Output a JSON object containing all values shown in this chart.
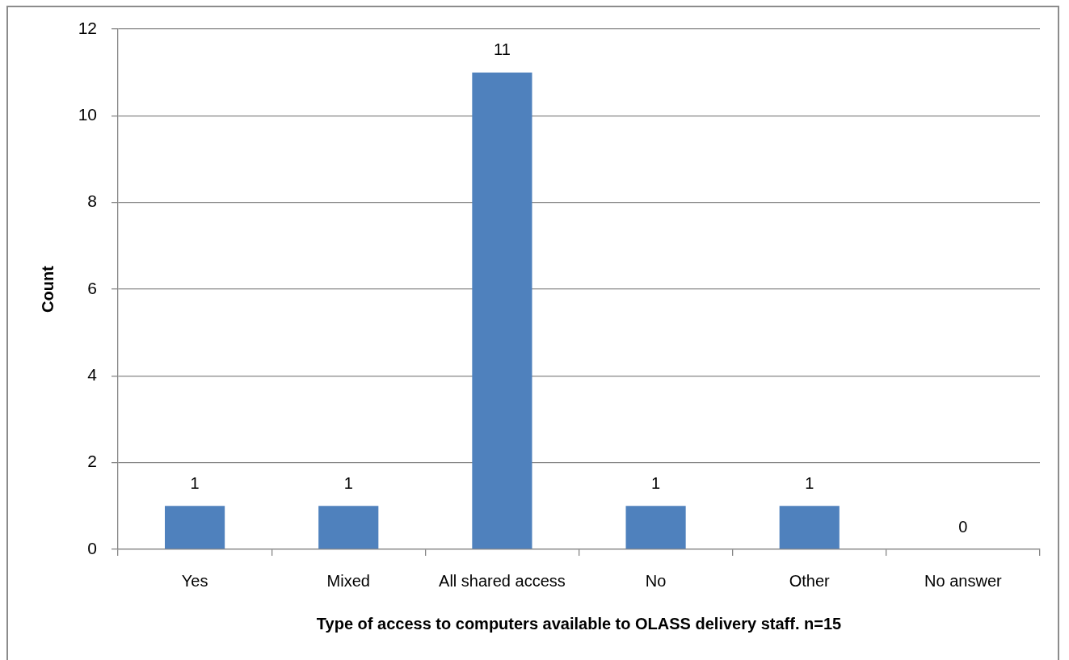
{
  "chart_data": {
    "type": "bar",
    "xlabel": "Type of access to computers available to OLASS delivery staff. n=15",
    "ylabel": "Count",
    "categories": [
      "Yes",
      "Mixed",
      "All shared access",
      "No",
      "Other",
      "No answer"
    ],
    "values": [
      1,
      1,
      11,
      1,
      1,
      0
    ],
    "color": "#4f81bd",
    "ylim": [
      0,
      12
    ],
    "yticks": [
      0,
      2,
      4,
      6,
      8,
      10,
      12
    ],
    "grid": "y",
    "data_labels": true
  }
}
